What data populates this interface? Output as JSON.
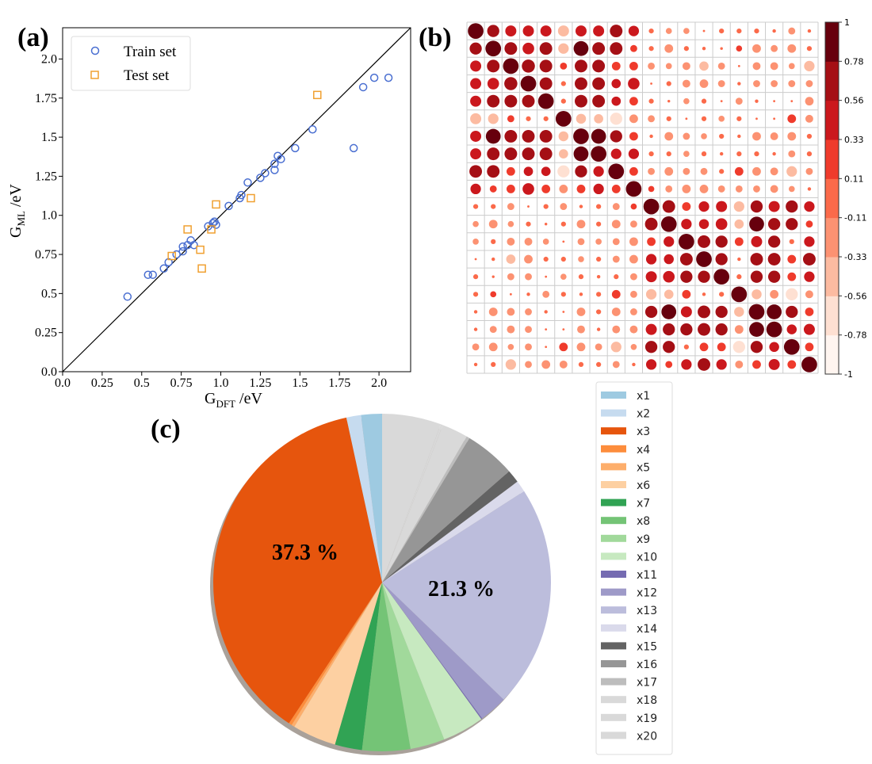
{
  "panel_labels": {
    "a": "(a)",
    "b": "(b)",
    "c": "(c)"
  },
  "chart_data": [
    {
      "type": "scatter",
      "panel": "(a)",
      "xlabel_main": "G",
      "xlabel_sub": "DFT",
      "xlabel_unit": " /eV",
      "ylabel_main": "G",
      "ylabel_sub": "ML",
      "ylabel_unit": " /eV",
      "xlim": [
        0,
        2.2
      ],
      "ylim": [
        0,
        2.2
      ],
      "xticks": [
        "0.0",
        "0.25",
        "0.5",
        "0.75",
        "1.0",
        "1.25",
        "1.5",
        "1.75",
        "2.0"
      ],
      "yticks": [
        "0.0",
        "0.25",
        "0.5",
        "0.75",
        "1.0",
        "1.25",
        "1.5",
        "1.75",
        "2.0"
      ],
      "reference_line": "y = x",
      "legend_position": "top-left",
      "series": [
        {
          "name": "Train set",
          "marker": "circle",
          "color": "#4a6fd1",
          "points": [
            [
              0.41,
              0.48
            ],
            [
              0.54,
              0.62
            ],
            [
              0.57,
              0.62
            ],
            [
              0.64,
              0.66
            ],
            [
              0.67,
              0.7
            ],
            [
              0.72,
              0.75
            ],
            [
              0.76,
              0.8
            ],
            [
              0.76,
              0.77
            ],
            [
              0.79,
              0.81
            ],
            [
              0.81,
              0.84
            ],
            [
              0.83,
              0.81
            ],
            [
              0.92,
              0.93
            ],
            [
              0.95,
              0.95
            ],
            [
              0.96,
              0.96
            ],
            [
              0.97,
              0.94
            ],
            [
              1.05,
              1.06
            ],
            [
              1.12,
              1.11
            ],
            [
              1.13,
              1.13
            ],
            [
              1.17,
              1.21
            ],
            [
              1.25,
              1.24
            ],
            [
              1.28,
              1.27
            ],
            [
              1.34,
              1.29
            ],
            [
              1.34,
              1.33
            ],
            [
              1.36,
              1.38
            ],
            [
              1.38,
              1.36
            ],
            [
              1.47,
              1.43
            ],
            [
              1.58,
              1.55
            ],
            [
              1.84,
              1.43
            ],
            [
              1.9,
              1.82
            ],
            [
              1.97,
              1.88
            ],
            [
              2.06,
              1.88
            ]
          ]
        },
        {
          "name": "Test set",
          "marker": "square",
          "color": "#f0a030",
          "points": [
            [
              0.69,
              0.74
            ],
            [
              0.79,
              0.91
            ],
            [
              0.87,
              0.78
            ],
            [
              0.88,
              0.66
            ],
            [
              0.94,
              0.91
            ],
            [
              0.97,
              1.07
            ],
            [
              1.19,
              1.11
            ],
            [
              1.61,
              1.77
            ]
          ]
        }
      ]
    },
    {
      "type": "heatmap",
      "panel": "(b)",
      "style": "circle correlation matrix",
      "colorbar_ticks": [
        "1",
        "0.78",
        "0.56",
        "0.33",
        "0.11",
        "-0.11",
        "-0.33",
        "-0.56",
        "-0.78",
        "-1"
      ],
      "colorbar_colors": [
        "#fff5f0",
        "#fee0d2",
        "#fcbba1",
        "#fc9272",
        "#fb6a4a",
        "#ef3b2c",
        "#cb181d",
        "#a50f15",
        "#67000d"
      ],
      "range": [
        -1,
        1
      ],
      "matrix": [
        [
          1,
          0.6,
          0.5,
          0.5,
          0.5,
          -0.5,
          0.5,
          0.5,
          0.65,
          0.45,
          -0.1,
          -0.15,
          -0.15,
          0.02,
          0.1,
          0.1,
          0.1,
          0.05,
          -0.2,
          0.05
        ],
        [
          0.6,
          1,
          0.65,
          0.55,
          0.65,
          -0.45,
          0.9,
          0.65,
          0.65,
          0.2,
          -0.1,
          -0.3,
          0.1,
          0.05,
          0.03,
          0.15,
          -0.3,
          -0.2,
          -0.3,
          0.1
        ],
        [
          0.5,
          0.65,
          1,
          0.7,
          0.65,
          0.2,
          0.65,
          0.65,
          0.3,
          0.3,
          -0.2,
          -0.15,
          -0.25,
          -0.35,
          -0.2,
          0.02,
          -0.25,
          -0.25,
          -0.15,
          -0.45
        ],
        [
          0.5,
          0.55,
          0.7,
          1,
          0.65,
          -0.1,
          0.65,
          0.65,
          0.35,
          0.55,
          0.02,
          -0.1,
          -0.25,
          -0.3,
          -0.2,
          0.05,
          -0.2,
          -0.2,
          -0.2,
          -0.2
        ],
        [
          0.5,
          0.65,
          0.65,
          0.65,
          1,
          0.1,
          0.65,
          0.65,
          0.35,
          0.3,
          0.1,
          0.03,
          -0.15,
          -0.1,
          0.02,
          -0.2,
          0.05,
          0.02,
          0.02,
          -0.3
        ],
        [
          -0.5,
          -0.45,
          0.2,
          -0.1,
          0.1,
          1,
          -0.4,
          -0.35,
          -0.6,
          -0.3,
          -0.2,
          0.1,
          0.02,
          0.1,
          -0.15,
          0.1,
          0.02,
          0.02,
          0.3,
          -0.25
        ],
        [
          0.5,
          0.9,
          0.65,
          0.65,
          0.65,
          -0.4,
          1,
          0.9,
          0.6,
          0.3,
          0.05,
          -0.3,
          -0.2,
          -0.15,
          0.1,
          0.05,
          -0.3,
          -0.25,
          -0.3,
          0.1
        ],
        [
          0.5,
          0.65,
          0.65,
          0.65,
          0.65,
          -0.35,
          0.9,
          1,
          0.45,
          0.45,
          0.1,
          0.1,
          -0.15,
          0.1,
          0.05,
          0.1,
          0.1,
          0.05,
          -0.2,
          0.1
        ],
        [
          0.65,
          0.65,
          0.3,
          0.35,
          0.35,
          -0.6,
          0.6,
          0.45,
          1,
          0.3,
          -0.2,
          -0.3,
          -0.2,
          -0.2,
          0.1,
          0.3,
          -0.3,
          -0.25,
          -0.45,
          -0.2
        ],
        [
          0.45,
          0.2,
          0.3,
          0.55,
          0.3,
          -0.3,
          0.3,
          0.45,
          0.3,
          1,
          0.15,
          -0.2,
          -0.3,
          -0.3,
          -0.2,
          -0.2,
          -0.2,
          -0.25,
          -0.15,
          0.05
        ],
        [
          0.1,
          -0.1,
          -0.2,
          0.02,
          0.1,
          -0.2,
          0.05,
          0.1,
          -0.2,
          0.15,
          1,
          0.65,
          0.3,
          0.45,
          0.5,
          -0.45,
          0.6,
          0.5,
          0.6,
          0.45
        ],
        [
          -0.15,
          -0.3,
          -0.15,
          -0.1,
          0.03,
          0.1,
          -0.3,
          0.1,
          -0.3,
          -0.2,
          0.65,
          1,
          0.45,
          0.4,
          0.55,
          -0.35,
          0.9,
          0.6,
          0.6,
          0.2
        ],
        [
          -0.15,
          0.1,
          -0.25,
          -0.25,
          -0.15,
          0.02,
          -0.2,
          -0.15,
          -0.2,
          -0.3,
          0.3,
          0.45,
          1,
          0.65,
          0.6,
          0.3,
          0.5,
          0.6,
          0.1,
          0.45
        ],
        [
          0.02,
          0.05,
          -0.35,
          -0.3,
          -0.1,
          0.1,
          -0.15,
          0.1,
          -0.2,
          -0.3,
          0.45,
          0.4,
          0.65,
          1,
          0.6,
          0.05,
          0.65,
          0.65,
          0.3,
          0.65
        ],
        [
          0.1,
          0.03,
          -0.2,
          -0.2,
          0.02,
          -0.15,
          0.1,
          0.05,
          0.1,
          -0.2,
          0.5,
          0.55,
          0.6,
          0.6,
          1,
          0.1,
          0.6,
          0.6,
          0.3,
          0.45
        ],
        [
          0.1,
          0.15,
          0.02,
          0.05,
          -0.2,
          0.1,
          0.05,
          0.1,
          0.3,
          -0.2,
          -0.45,
          -0.35,
          0.3,
          0.05,
          0.1,
          1,
          -0.4,
          -0.3,
          -0.6,
          -0.25
        ],
        [
          0.05,
          -0.3,
          -0.25,
          -0.2,
          0.05,
          0.02,
          -0.3,
          0.1,
          -0.3,
          -0.2,
          0.6,
          0.9,
          0.5,
          0.65,
          0.6,
          -0.4,
          1,
          0.9,
          0.6,
          0.3
        ],
        [
          0.05,
          -0.2,
          -0.25,
          -0.2,
          0.02,
          0.02,
          -0.25,
          0.05,
          -0.25,
          -0.25,
          0.5,
          0.6,
          0.6,
          0.65,
          0.6,
          -0.3,
          0.9,
          1,
          0.4,
          0.5
        ],
        [
          -0.2,
          -0.3,
          -0.15,
          -0.2,
          0.02,
          0.3,
          -0.3,
          -0.2,
          -0.45,
          -0.15,
          0.6,
          0.6,
          0.1,
          0.3,
          0.3,
          -0.6,
          0.6,
          0.4,
          1,
          0.3
        ],
        [
          0.05,
          0.1,
          -0.45,
          -0.2,
          -0.3,
          -0.25,
          0.1,
          0.1,
          -0.2,
          0.05,
          0.45,
          0.2,
          0.45,
          0.65,
          0.45,
          -0.25,
          0.3,
          0.5,
          0.3,
          1
        ]
      ]
    },
    {
      "type": "pie",
      "panel": "(c)",
      "start_angle_deg": 90,
      "direction": "counterclockwise",
      "shadow": true,
      "legend_position": "right",
      "labels": [
        "x1",
        "x2",
        "x3",
        "x4",
        "x5",
        "x6",
        "x7",
        "x8",
        "x9",
        "x10",
        "x11",
        "x12",
        "x13",
        "x14",
        "x15",
        "x16",
        "x17",
        "x18",
        "x19",
        "x20"
      ],
      "values": [
        2.0,
        1.4,
        37.3,
        0.3,
        0.3,
        4.2,
        2.6,
        4.6,
        3.3,
        4.0,
        0.1,
        2.7,
        21.3,
        1.1,
        1.25,
        4.9,
        0.3,
        2.5,
        0.2,
        5.65
      ],
      "colors": [
        "#9ecae1",
        "#c6dbef",
        "#e6550d",
        "#fd8d3c",
        "#fdae6b",
        "#fdd0a2",
        "#31a354",
        "#74c476",
        "#a1d99b",
        "#c7e9c0",
        "#756bb1",
        "#9e9ac8",
        "#bcbddc",
        "#dadaeb",
        "#636363",
        "#969696",
        "#bdbdbd",
        "#d9d9d9",
        "#d9d9d9",
        "#d9d9d9"
      ],
      "slice_labels": [
        {
          "slice": "x3",
          "text": "37.3 %"
        },
        {
          "slice": "x13",
          "text": "21.3 %"
        }
      ]
    }
  ]
}
